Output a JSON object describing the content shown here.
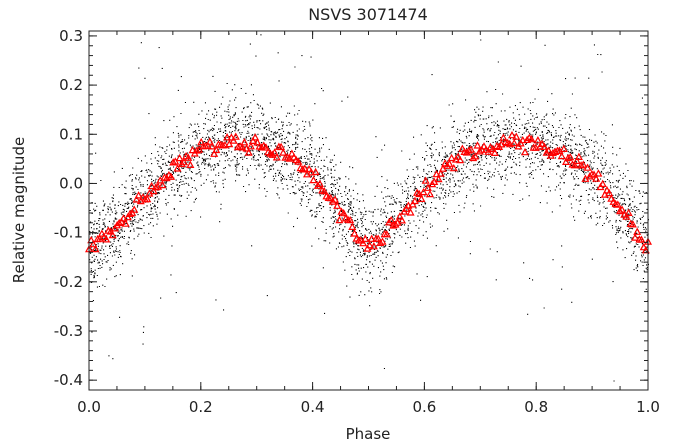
{
  "chart_data": {
    "type": "scatter",
    "title": "NSVS 3071474",
    "xlabel": "Phase",
    "ylabel": "Relative magnitude",
    "xlim": [
      0.0,
      1.0
    ],
    "ylim": [
      -0.42,
      0.31
    ],
    "x_ticks": [
      "0.0",
      "0.2",
      "0.4",
      "0.6",
      "0.8",
      "1.0"
    ],
    "y_ticks": [
      "0.3",
      "0.2",
      "0.1",
      "0.0",
      "-0.1",
      "-0.2",
      "-0.3",
      "-0.4"
    ],
    "grid": false,
    "legend": "none",
    "series": [
      {
        "color": "#000000",
        "marker": "dot",
        "description_points_dense_scatter": true,
        "x": [
          0.0,
          0.05,
          0.1,
          0.15,
          0.2,
          0.25,
          0.3,
          0.35,
          0.4,
          0.45,
          0.5,
          0.55,
          0.6,
          0.65,
          0.7,
          0.75,
          0.8,
          0.85,
          0.9,
          0.95,
          1.0
        ],
        "y": [
          -0.13,
          -0.09,
          -0.03,
          0.03,
          0.07,
          0.085,
          0.08,
          0.06,
          0.02,
          -0.06,
          -0.13,
          -0.08,
          -0.01,
          0.04,
          0.07,
          0.085,
          0.08,
          0.06,
          0.02,
          -0.05,
          -0.13
        ],
        "spread": 0.08
      },
      {
        "color": "#ff0000",
        "marker": "triangle",
        "x": [
          0.0,
          0.05,
          0.1,
          0.15,
          0.2,
          0.25,
          0.3,
          0.35,
          0.4,
          0.45,
          0.5,
          0.55,
          0.6,
          0.65,
          0.7,
          0.75,
          0.8,
          0.85,
          0.9,
          0.95,
          1.0
        ],
        "y": [
          -0.13,
          -0.09,
          -0.03,
          0.03,
          0.07,
          0.085,
          0.08,
          0.06,
          0.02,
          -0.06,
          -0.13,
          -0.08,
          -0.01,
          0.04,
          0.07,
          0.085,
          0.08,
          0.06,
          0.02,
          -0.05,
          -0.13
        ]
      }
    ]
  }
}
